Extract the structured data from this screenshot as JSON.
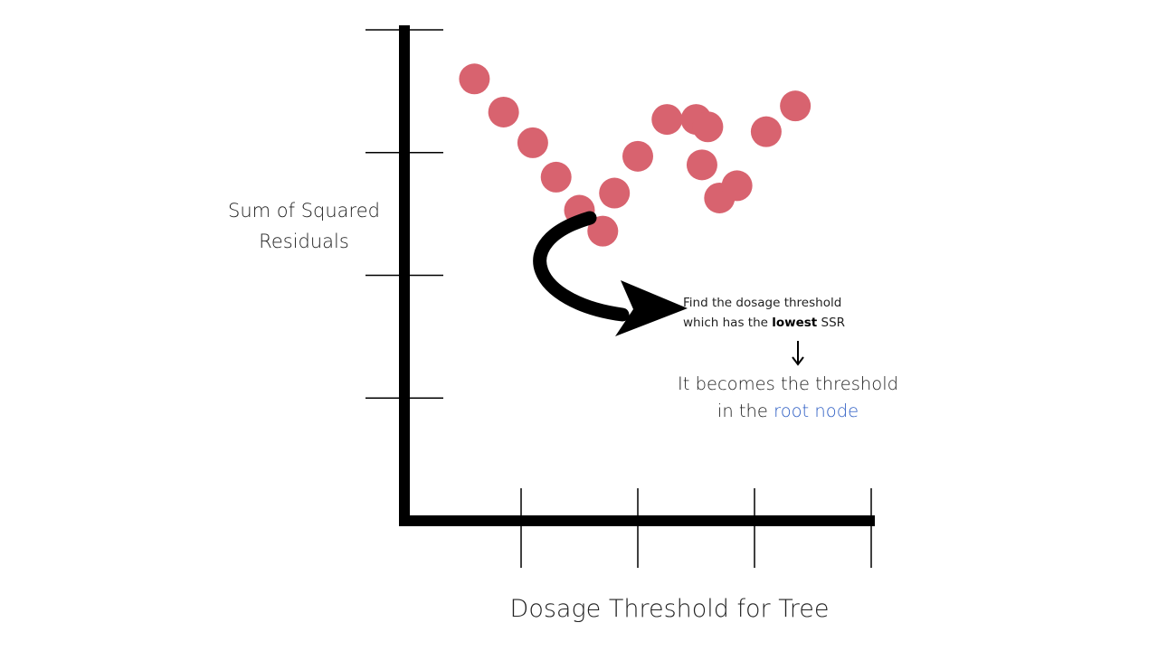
{
  "labels": {
    "y_axis_line1": "Sum of Squared",
    "y_axis_line2": "Residuals",
    "x_axis": "Dosage Threshold for Tree"
  },
  "annotation": {
    "line1": "Find the dosage threshold",
    "line2_pre": "which has the ",
    "line2_bold": "lowest",
    "line2_post": " SSR",
    "result_line1": "It becomes the threshold",
    "result_line2_pre": "in the ",
    "result_line2_accent": "root node"
  },
  "colors": {
    "point": "#d8636f",
    "axis": "#000000",
    "accent": "#2f5fc4"
  },
  "chart_data": {
    "type": "scatter",
    "title": "",
    "xlabel": "Dosage Threshold for Tree",
    "ylabel": "Sum of Squared Residuals",
    "points": [
      {
        "x": 0.6,
        "y": 3.6
      },
      {
        "x": 0.85,
        "y": 3.33
      },
      {
        "x": 1.1,
        "y": 3.08
      },
      {
        "x": 1.3,
        "y": 2.8
      },
      {
        "x": 1.5,
        "y": 2.53
      },
      {
        "x": 1.7,
        "y": 2.36
      },
      {
        "x": 1.8,
        "y": 2.67
      },
      {
        "x": 2.0,
        "y": 2.97
      },
      {
        "x": 2.25,
        "y": 3.27
      },
      {
        "x": 2.5,
        "y": 3.27
      },
      {
        "x": 2.6,
        "y": 3.21
      },
      {
        "x": 2.55,
        "y": 2.9
      },
      {
        "x": 2.7,
        "y": 2.63
      },
      {
        "x": 2.85,
        "y": 2.73
      },
      {
        "x": 3.1,
        "y": 3.17
      },
      {
        "x": 3.35,
        "y": 3.38
      }
    ],
    "highlight_index": 5,
    "xlim": [
      0,
      4
    ],
    "ylim": [
      0,
      4
    ],
    "x_ticks": [
      1,
      2,
      3,
      4
    ],
    "y_ticks": [
      1,
      2,
      3,
      4
    ],
    "grid": false
  }
}
